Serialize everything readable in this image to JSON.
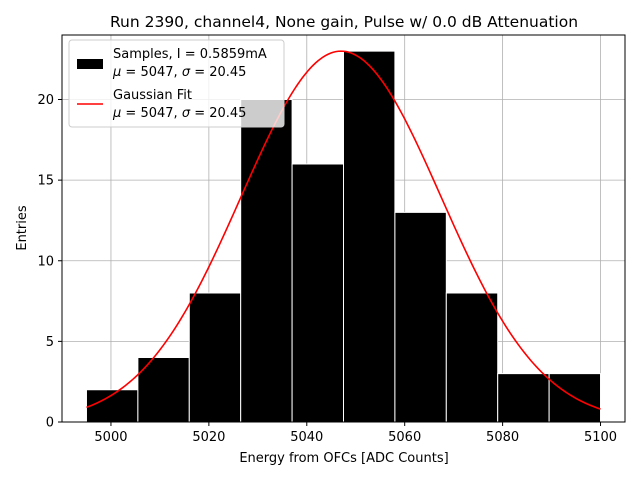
{
  "chart_data": {
    "type": "bar",
    "title": "Run 2390, channel4, None gain, Pulse w/ 0.0 dB Attenuation",
    "xlabel": "Energy from OFCs [ADC Counts]",
    "ylabel": "Entries",
    "xlim": [
      4990,
      5105
    ],
    "ylim": [
      0,
      24
    ],
    "xticks": [
      5000,
      5020,
      5040,
      5060,
      5080,
      5100
    ],
    "yticks": [
      0,
      5,
      10,
      15,
      20
    ],
    "grid": true,
    "bins": {
      "edges": [
        4995,
        5005.5,
        5016,
        5026.5,
        5037,
        5047.5,
        5058,
        5068.5,
        5079,
        5089.5,
        5100
      ],
      "counts": [
        2,
        4,
        8,
        20,
        16,
        23,
        13,
        8,
        3,
        3
      ],
      "color": "#000000"
    },
    "fit": {
      "name": "Gaussian Fit",
      "mu": 5047,
      "sigma": 20.45,
      "amplitude": 23,
      "x_range": [
        4995,
        5100
      ],
      "color": "#ff0000"
    },
    "legend": {
      "location": "top-left",
      "entries": [
        {
          "line1": "Samples, I = 0.5859mA",
          "mu_value": "5047",
          "sigma_value": "20.45"
        },
        {
          "line1": "Gaussian Fit",
          "mu_value": "5047",
          "sigma_value": "20.45"
        }
      ],
      "mu_symbol": "μ",
      "sigma_symbol": "σ"
    }
  }
}
